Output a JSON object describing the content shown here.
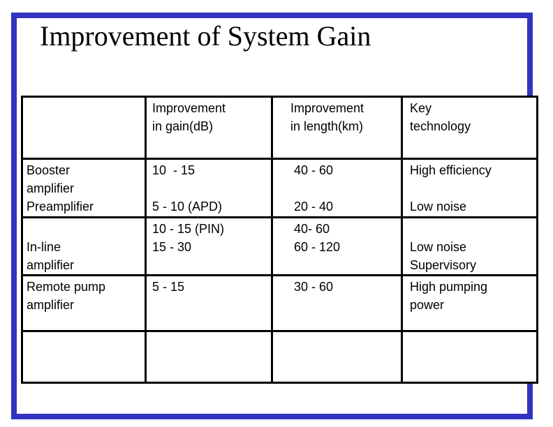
{
  "slide": {
    "title": "Improvement of System Gain"
  },
  "colors": {
    "frame": "#3333bf",
    "table_border": "#000000",
    "background": "#ffffff",
    "text": "#000000"
  },
  "table": {
    "header": [
      [],
      [
        "Improvement",
        "in gain(dB)"
      ],
      [
        "Improvement",
        "in length(km)"
      ],
      [
        "Key",
        "technology"
      ]
    ],
    "rows": [
      [
        [
          "Booster",
          "amplifier",
          "Preamplifier"
        ],
        [
          "10  - 15",
          "",
          "5 - 10 (APD)"
        ],
        [
          " 40 - 60",
          "",
          " 20 - 40"
        ],
        [
          "High efficiency",
          "",
          "Low noise"
        ]
      ],
      [
        [
          "",
          "In-line",
          "amplifier"
        ],
        [
          "10 - 15 (PIN)",
          "15 - 30"
        ],
        [
          " 40- 60",
          " 60 - 120"
        ],
        [
          "",
          "Low noise",
          "Supervisory"
        ]
      ],
      [
        [
          "Remote pump",
          "amplifier"
        ],
        [
          "5 - 15"
        ],
        [
          " 30 - 60"
        ],
        [
          "High pumping",
          "power"
        ]
      ],
      [
        [],
        [],
        [],
        []
      ]
    ]
  }
}
